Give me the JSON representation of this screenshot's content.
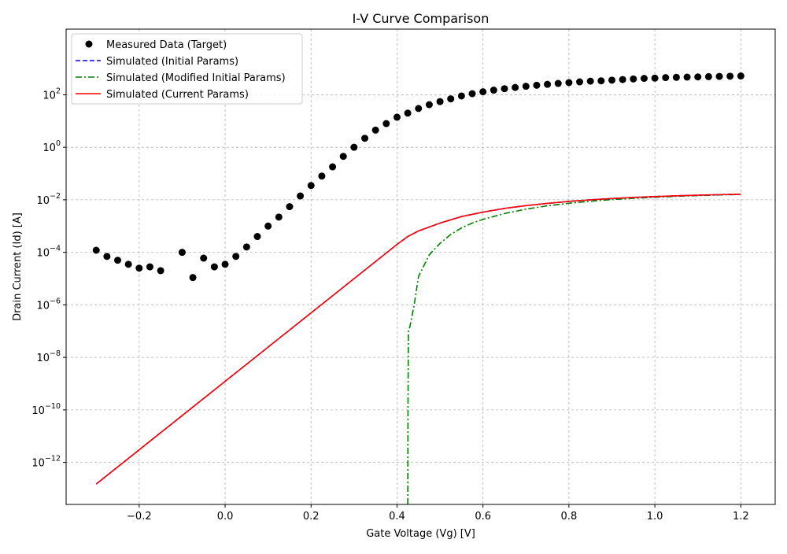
{
  "chart_data": {
    "type": "line",
    "title": "I-V Curve Comparison",
    "xlabel": "Gate Voltage (Vg) [V]",
    "ylabel": "Drain Current (Id) [A]",
    "xlim": [
      -0.37,
      1.28
    ],
    "ylim_log10": [
      -13.6,
      4.5
    ],
    "y_scale": "log",
    "grid": true,
    "legend_position": "top-left",
    "x_ticks": [
      -0.2,
      0.0,
      0.2,
      0.4,
      0.6,
      0.8,
      1.0,
      1.2
    ],
    "x_tick_labels": [
      "−0.2",
      "0.0",
      "0.2",
      "0.4",
      "0.6",
      "0.8",
      "1.0",
      "1.2"
    ],
    "y_ticks_exp": [
      2,
      0,
      -2,
      -4,
      -6,
      -8,
      -10,
      -12
    ],
    "y_tick_base": "10",
    "legend": [
      {
        "label": "Measured Data (Target)",
        "color": "#000000",
        "style": "marker"
      },
      {
        "label": "Simulated (Initial Params)",
        "color": "#0000ff",
        "style": "dashed"
      },
      {
        "label": "Simulated (Modified Initial Params)",
        "color": "#008000",
        "style": "dashdot"
      },
      {
        "label": "Simulated (Current Params)",
        "color": "#ff0000",
        "style": "solid"
      }
    ],
    "series": [
      {
        "name": "Measured Data (Target)",
        "color": "#000000",
        "kind": "scatter",
        "x": [
          -0.3,
          -0.275,
          -0.25,
          -0.225,
          -0.2,
          -0.175,
          -0.15,
          -0.1,
          -0.075,
          -0.05,
          -0.025,
          0.0,
          0.025,
          0.05,
          0.075,
          0.1,
          0.125,
          0.15,
          0.175,
          0.2,
          0.225,
          0.25,
          0.275,
          0.3,
          0.325,
          0.35,
          0.375,
          0.4,
          0.425,
          0.45,
          0.475,
          0.5,
          0.525,
          0.55,
          0.575,
          0.6,
          0.625,
          0.65,
          0.675,
          0.7,
          0.725,
          0.75,
          0.775,
          0.8,
          0.825,
          0.85,
          0.875,
          0.9,
          0.925,
          0.95,
          0.975,
          1.0,
          1.025,
          1.05,
          1.075,
          1.1,
          1.125,
          1.15,
          1.175,
          1.2
        ],
        "y": [
          0.00012,
          7e-05,
          5e-05,
          3.5e-05,
          2.5e-05,
          2.8e-05,
          2e-05,
          0.0001,
          1.1e-05,
          6e-05,
          2.8e-05,
          3.5e-05,
          7e-05,
          0.00016,
          0.0004,
          0.001,
          0.0022,
          0.0055,
          0.014,
          0.035,
          0.08,
          0.18,
          0.45,
          1.0,
          2.2,
          4.5,
          8,
          14,
          20,
          30,
          42,
          55,
          70,
          90,
          110,
          130,
          150,
          170,
          190,
          210,
          230,
          250,
          270,
          290,
          310,
          330,
          340,
          360,
          380,
          400,
          420,
          430,
          450,
          460,
          470,
          480,
          490,
          500,
          510,
          520
        ]
      },
      {
        "name": "Simulated (Initial Params)",
        "color": "#0000ff",
        "kind": "dashed",
        "x": [
          -0.3,
          0.4,
          0.425,
          0.45,
          0.5,
          0.55,
          0.6,
          0.65,
          0.7,
          0.75,
          0.8,
          0.85,
          0.9,
          0.95,
          1.0,
          1.05,
          1.1,
          1.15,
          1.2
        ],
        "y": [
          1.5e-13,
          0.0002,
          0.0004,
          0.00065,
          0.0013,
          0.0023,
          0.0034,
          0.0047,
          0.006,
          0.0073,
          0.0087,
          0.01,
          0.0112,
          0.0123,
          0.0133,
          0.0142,
          0.015,
          0.0157,
          0.0163
        ]
      },
      {
        "name": "Simulated (Modified Initial Params)",
        "color": "#008000",
        "kind": "dashdot",
        "x": [
          0.425,
          0.4255,
          0.4265,
          0.43,
          0.44,
          0.45,
          0.475,
          0.5,
          0.525,
          0.55,
          0.575,
          0.6,
          0.65,
          0.7,
          0.75,
          0.8,
          0.85,
          0.9,
          0.95,
          1.0,
          1.05,
          1.1,
          1.15,
          1.2
        ],
        "y": [
          1e-14,
          1e-10,
          1e-07,
          1.5e-07,
          1e-06,
          1.2e-05,
          8e-05,
          0.00022,
          0.00048,
          0.00085,
          0.0013,
          0.0018,
          0.003,
          0.0044,
          0.0059,
          0.0074,
          0.0088,
          0.0102,
          0.0114,
          0.0125,
          0.0136,
          0.0145,
          0.0153,
          0.016
        ]
      },
      {
        "name": "Simulated (Current Params)",
        "color": "#ff0000",
        "kind": "solid",
        "x": [
          -0.3,
          0.4,
          0.425,
          0.45,
          0.5,
          0.55,
          0.6,
          0.65,
          0.7,
          0.75,
          0.8,
          0.85,
          0.9,
          0.95,
          1.0,
          1.05,
          1.1,
          1.15,
          1.2
        ],
        "y": [
          1.5e-13,
          0.0002,
          0.0004,
          0.00065,
          0.0013,
          0.0023,
          0.0034,
          0.0047,
          0.006,
          0.0073,
          0.0087,
          0.01,
          0.0112,
          0.0123,
          0.0133,
          0.0142,
          0.015,
          0.0157,
          0.0163
        ]
      }
    ]
  }
}
